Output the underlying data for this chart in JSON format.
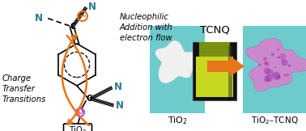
{
  "bg_color": "#ffffff",
  "orange": "#E8751A",
  "dark_teal": "#2B7B8C",
  "cyan_bg": "#6DCBCC",
  "purple_powder": "#CC88CC",
  "green_solution": "#C8D820",
  "title_tcnq": "TCNQ",
  "label_tio2": "TiO$_2$",
  "label_product": "TiO$_2$–TCNQ",
  "text_nucleophilic": "Nucleophilic\nAddition with\nelectron flow",
  "text_charge": "Charge\nTransfer\nTransitions",
  "figsize": [
    3.78,
    1.62
  ],
  "dpi": 100
}
